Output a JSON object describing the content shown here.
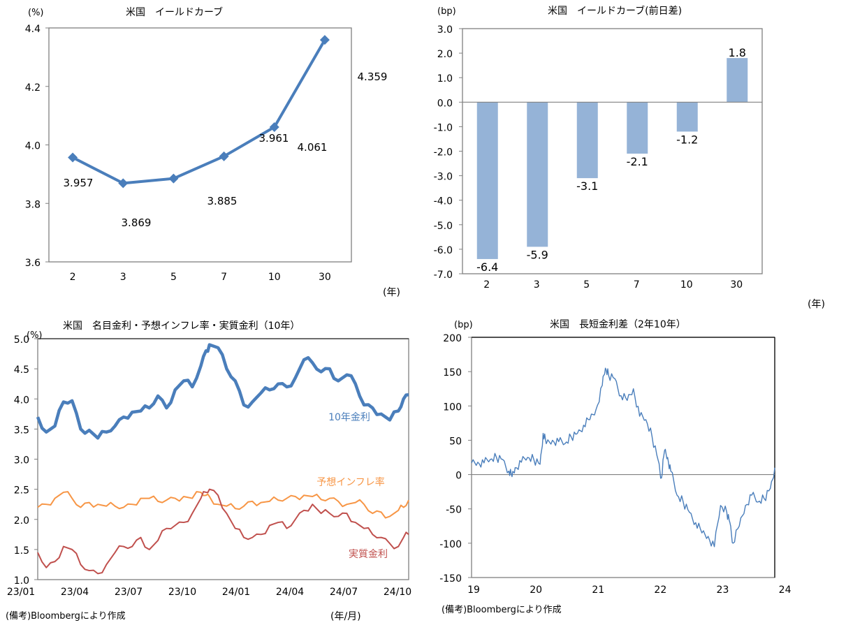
{
  "chart_data": [
    {
      "type": "line",
      "title": "米国　イールドカーブ",
      "ylabel": "(%)",
      "xlabel": "(年)",
      "categories": [
        "2",
        "3",
        "5",
        "7",
        "10",
        "30"
      ],
      "values": [
        3.957,
        3.869,
        3.885,
        3.961,
        4.061,
        4.359
      ],
      "data_labels": [
        "3.957",
        "3.869",
        "3.885",
        "3.961",
        "4.061",
        "4.359"
      ],
      "ylim": [
        3.6,
        4.4
      ],
      "yticks": [
        3.6,
        3.8,
        4.0,
        4.2,
        4.4
      ],
      "ytick_labels": [
        "3.6",
        "3.8",
        "4.0",
        "4.2",
        "4.4"
      ],
      "color": "#4a7ebb",
      "grid": false
    },
    {
      "type": "bar",
      "title": "米国　イールドカーブ(前日差)",
      "ylabel": "(bp)",
      "xlabel": "(年)",
      "categories": [
        "2",
        "3",
        "5",
        "7",
        "10",
        "30"
      ],
      "values": [
        -6.4,
        -5.9,
        -3.1,
        -2.1,
        -1.2,
        1.8
      ],
      "data_labels": [
        "-6.4",
        "-5.9",
        "-3.1",
        "-2.1",
        "-1.2",
        "1.8"
      ],
      "ylim": [
        -7.0,
        3.0
      ],
      "yticks": [
        3.0,
        2.0,
        1.0,
        0.0,
        -1.0,
        -2.0,
        -3.0,
        -4.0,
        -5.0,
        -6.0,
        -7.0
      ],
      "ytick_labels": [
        "3.0",
        "2.0",
        "1.0",
        "0.0",
        "-1.0",
        "-2.0",
        "-3.0",
        "-4.0",
        "-5.0",
        "-6.0",
        "-7.0"
      ],
      "color": "#95b3d7",
      "grid": false
    },
    {
      "type": "line",
      "title": "米国　名目金利・予想インフレ率・実質金利（10年）",
      "ylabel": "(%)",
      "xlabel": "(年/月)",
      "x_tick_labels": [
        "23/01",
        "23/04",
        "23/07",
        "23/10",
        "24/01",
        "24/04",
        "24/07",
        "24/10"
      ],
      "x_range_months": [
        0,
        21.6
      ],
      "ylim": [
        1.0,
        5.0
      ],
      "yticks": [
        1.0,
        1.5,
        2.0,
        2.5,
        3.0,
        3.5,
        4.0,
        4.5,
        5.0
      ],
      "ytick_labels": [
        "1.0",
        "1.5",
        "2.0",
        "2.5",
        "3.0",
        "3.5",
        "4.0",
        "4.5",
        "5.0"
      ],
      "x_months": [
        0,
        0.5,
        1,
        1.5,
        2,
        2.5,
        3,
        3.5,
        4,
        4.5,
        5,
        5.5,
        6,
        6.5,
        7,
        7.5,
        8,
        8.5,
        9,
        9.5,
        9.8,
        10,
        10.5,
        11,
        11.5,
        12,
        12.5,
        13,
        13.5,
        14,
        14.5,
        15,
        15.5,
        16,
        16.5,
        17,
        17.5,
        18,
        18.5,
        19,
        19.5,
        20,
        20.5,
        21,
        21.3,
        21.6
      ],
      "series": [
        {
          "name": "10年金利",
          "color": "#4a7ebb",
          "values": [
            3.7,
            3.45,
            3.55,
            3.95,
            3.97,
            3.5,
            3.48,
            3.35,
            3.45,
            3.55,
            3.7,
            3.78,
            3.8,
            3.85,
            4.05,
            3.85,
            4.15,
            4.3,
            4.2,
            4.55,
            4.8,
            4.9,
            4.85,
            4.5,
            4.3,
            3.9,
            3.95,
            4.1,
            4.15,
            4.25,
            4.2,
            4.35,
            4.65,
            4.6,
            4.45,
            4.5,
            4.3,
            4.4,
            4.25,
            3.9,
            3.85,
            3.75,
            3.65,
            3.8,
            4.0,
            4.07
          ]
        },
        {
          "name": "予想インフレ率",
          "color": "#f79646",
          "values": [
            2.2,
            2.25,
            2.35,
            2.45,
            2.35,
            2.2,
            2.28,
            2.25,
            2.22,
            2.22,
            2.2,
            2.25,
            2.35,
            2.35,
            2.3,
            2.32,
            2.35,
            2.38,
            2.35,
            2.45,
            2.4,
            2.38,
            2.25,
            2.22,
            2.18,
            2.22,
            2.3,
            2.28,
            2.3,
            2.32,
            2.35,
            2.38,
            2.4,
            2.38,
            2.33,
            2.35,
            2.3,
            2.25,
            2.28,
            2.25,
            2.1,
            2.12,
            2.05,
            2.15,
            2.2,
            2.32
          ]
        },
        {
          "name": "実質金利",
          "color": "#c0504d",
          "values": [
            1.45,
            1.2,
            1.3,
            1.55,
            1.5,
            1.25,
            1.15,
            1.1,
            1.25,
            1.45,
            1.55,
            1.55,
            1.7,
            1.5,
            1.65,
            1.85,
            1.9,
            1.95,
            2.1,
            2.35,
            2.45,
            2.5,
            2.4,
            2.1,
            1.85,
            1.7,
            1.7,
            1.75,
            1.9,
            1.95,
            1.85,
            2.0,
            2.15,
            2.25,
            2.1,
            2.1,
            2.05,
            2.1,
            1.95,
            1.85,
            1.75,
            1.7,
            1.6,
            1.55,
            1.7,
            1.75
          ]
        }
      ],
      "grid": false
    },
    {
      "type": "line",
      "title": "米国　長短金利差（2年10年）",
      "ylabel": "(bp)",
      "x_tick_labels": [
        "19",
        "20",
        "21",
        "22",
        "23",
        "24"
      ],
      "x_range_years": [
        0,
        4.87
      ],
      "ylim": [
        -150,
        200
      ],
      "yticks": [
        200,
        150,
        100,
        50,
        0,
        -50,
        -100,
        -150
      ],
      "ytick_labels": [
        "200",
        "150",
        "100",
        "50",
        "0",
        "-50",
        "-100",
        "-150"
      ],
      "x_years": [
        0,
        0.1,
        0.2,
        0.3,
        0.4,
        0.5,
        0.6,
        0.65,
        0.7,
        0.8,
        0.9,
        1.0,
        1.1,
        1.15,
        1.2,
        1.3,
        1.4,
        1.5,
        1.6,
        1.7,
        1.8,
        1.9,
        2.0,
        2.1,
        2.15,
        2.2,
        2.3,
        2.4,
        2.5,
        2.6,
        2.7,
        2.8,
        2.9,
        3.0,
        3.05,
        3.1,
        3.15,
        3.2,
        3.3,
        3.4,
        3.5,
        3.6,
        3.7,
        3.8,
        3.9,
        4.0,
        4.1,
        4.15,
        4.2,
        4.3,
        4.4,
        4.5,
        4.6,
        4.7,
        4.8,
        4.87
      ],
      "series": [
        {
          "name": "長短金利差",
          "color": "#4a7ebb",
          "values": [
            17,
            18,
            17,
            22,
            25,
            22,
            5,
            -3,
            10,
            18,
            25,
            22,
            15,
            60,
            45,
            50,
            48,
            45,
            55,
            60,
            72,
            80,
            95,
            130,
            155,
            145,
            140,
            115,
            108,
            125,
            85,
            80,
            55,
            20,
            -5,
            35,
            25,
            5,
            -30,
            -40,
            -55,
            -70,
            -85,
            -90,
            -105,
            -45,
            -55,
            -70,
            -100,
            -75,
            -45,
            -30,
            -40,
            -35,
            -20,
            10
          ]
        }
      ],
      "grid": false
    }
  ],
  "footnotes": {
    "left": "(備考)Bloombergにより作成",
    "right": "(備考)Bloombergにより作成"
  }
}
